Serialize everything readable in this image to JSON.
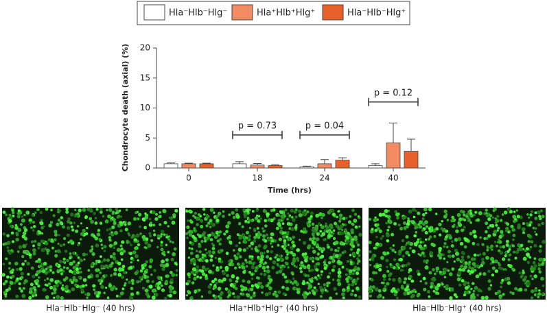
{
  "chart_data": {
    "type": "bar",
    "y_label": "Chondrocyte death (axial) (%)",
    "x_label": "Time (hrs)",
    "categories": [
      "0",
      "18",
      "24",
      "40"
    ],
    "series": [
      {
        "name": "Hla⁻Hlb⁻Hlg⁻",
        "color": "#ffffff",
        "values": [
          0.7,
          0.7,
          0.2,
          0.4
        ],
        "errors": [
          0.15,
          0.35,
          0.1,
          0.3
        ]
      },
      {
        "name": "Hla⁺Hlb⁺Hlg⁺",
        "color": "#f28b62",
        "values": [
          0.7,
          0.5,
          0.7,
          4.2
        ],
        "errors": [
          0.1,
          0.25,
          0.7,
          3.3
        ]
      },
      {
        "name": "Hla⁻Hlb⁻Hlg⁺",
        "color": "#e8602a",
        "values": [
          0.7,
          0.4,
          1.3,
          2.8
        ],
        "errors": [
          0.1,
          0.15,
          0.4,
          2.0
        ]
      }
    ],
    "p_values": [
      null,
      "p = 0.73",
      "p = 0.04",
      "p = 0.12"
    ],
    "ylim": [
      0,
      20
    ],
    "yticks": [
      0,
      5,
      10,
      15,
      20
    ],
    "legend": "top"
  },
  "panels": [
    {
      "caption": "Hla⁻Hlb⁻Hlg⁻ (40 hrs)"
    },
    {
      "caption": "Hla⁺Hlb⁺Hlg⁺ (40 hrs)"
    },
    {
      "caption": "Hla⁻Hlb⁻Hlg⁺ (40 hrs)"
    }
  ]
}
